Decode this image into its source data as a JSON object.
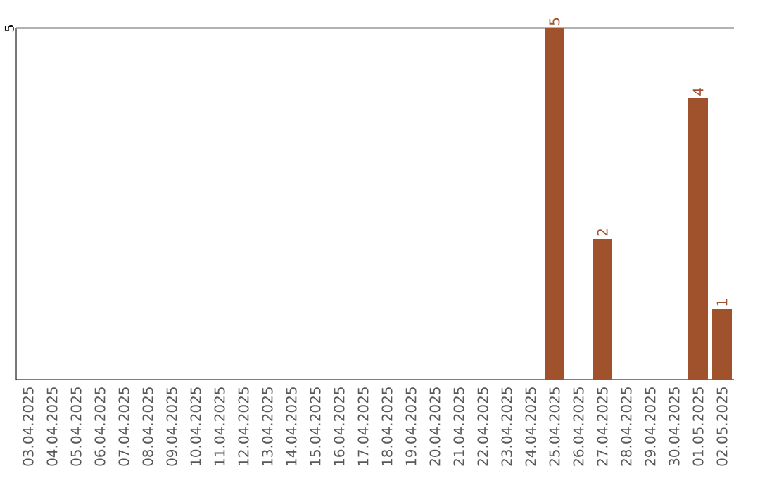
{
  "chart_data": {
    "type": "bar",
    "categories": [
      "03.04.2025",
      "04.04.2025",
      "05.04.2025",
      "06.04.2025",
      "07.04.2025",
      "08.04.2025",
      "09.04.2025",
      "10.04.2025",
      "11.04.2025",
      "12.04.2025",
      "13.04.2025",
      "14.04.2025",
      "15.04.2025",
      "16.04.2025",
      "17.04.2025",
      "18.04.2025",
      "19.04.2025",
      "20.04.2025",
      "21.04.2025",
      "22.04.2025",
      "23.04.2025",
      "24.04.2025",
      "25.04.2025",
      "26.04.2025",
      "27.04.2025",
      "28.04.2025",
      "29.04.2025",
      "30.04.2025",
      "01.05.2025",
      "02.05.2025"
    ],
    "values": [
      null,
      null,
      null,
      null,
      null,
      null,
      null,
      null,
      null,
      null,
      null,
      null,
      null,
      null,
      null,
      null,
      null,
      null,
      null,
      null,
      null,
      null,
      5,
      null,
      2,
      null,
      null,
      null,
      4,
      1
    ],
    "value_labels": [
      null,
      null,
      null,
      null,
      null,
      null,
      null,
      null,
      null,
      null,
      null,
      null,
      null,
      null,
      null,
      null,
      null,
      null,
      null,
      null,
      null,
      null,
      "5",
      null,
      "2",
      null,
      null,
      null,
      "4",
      "1"
    ],
    "color": "#a0522d",
    "ylim": [
      0,
      5
    ],
    "yticks": [
      5
    ]
  }
}
